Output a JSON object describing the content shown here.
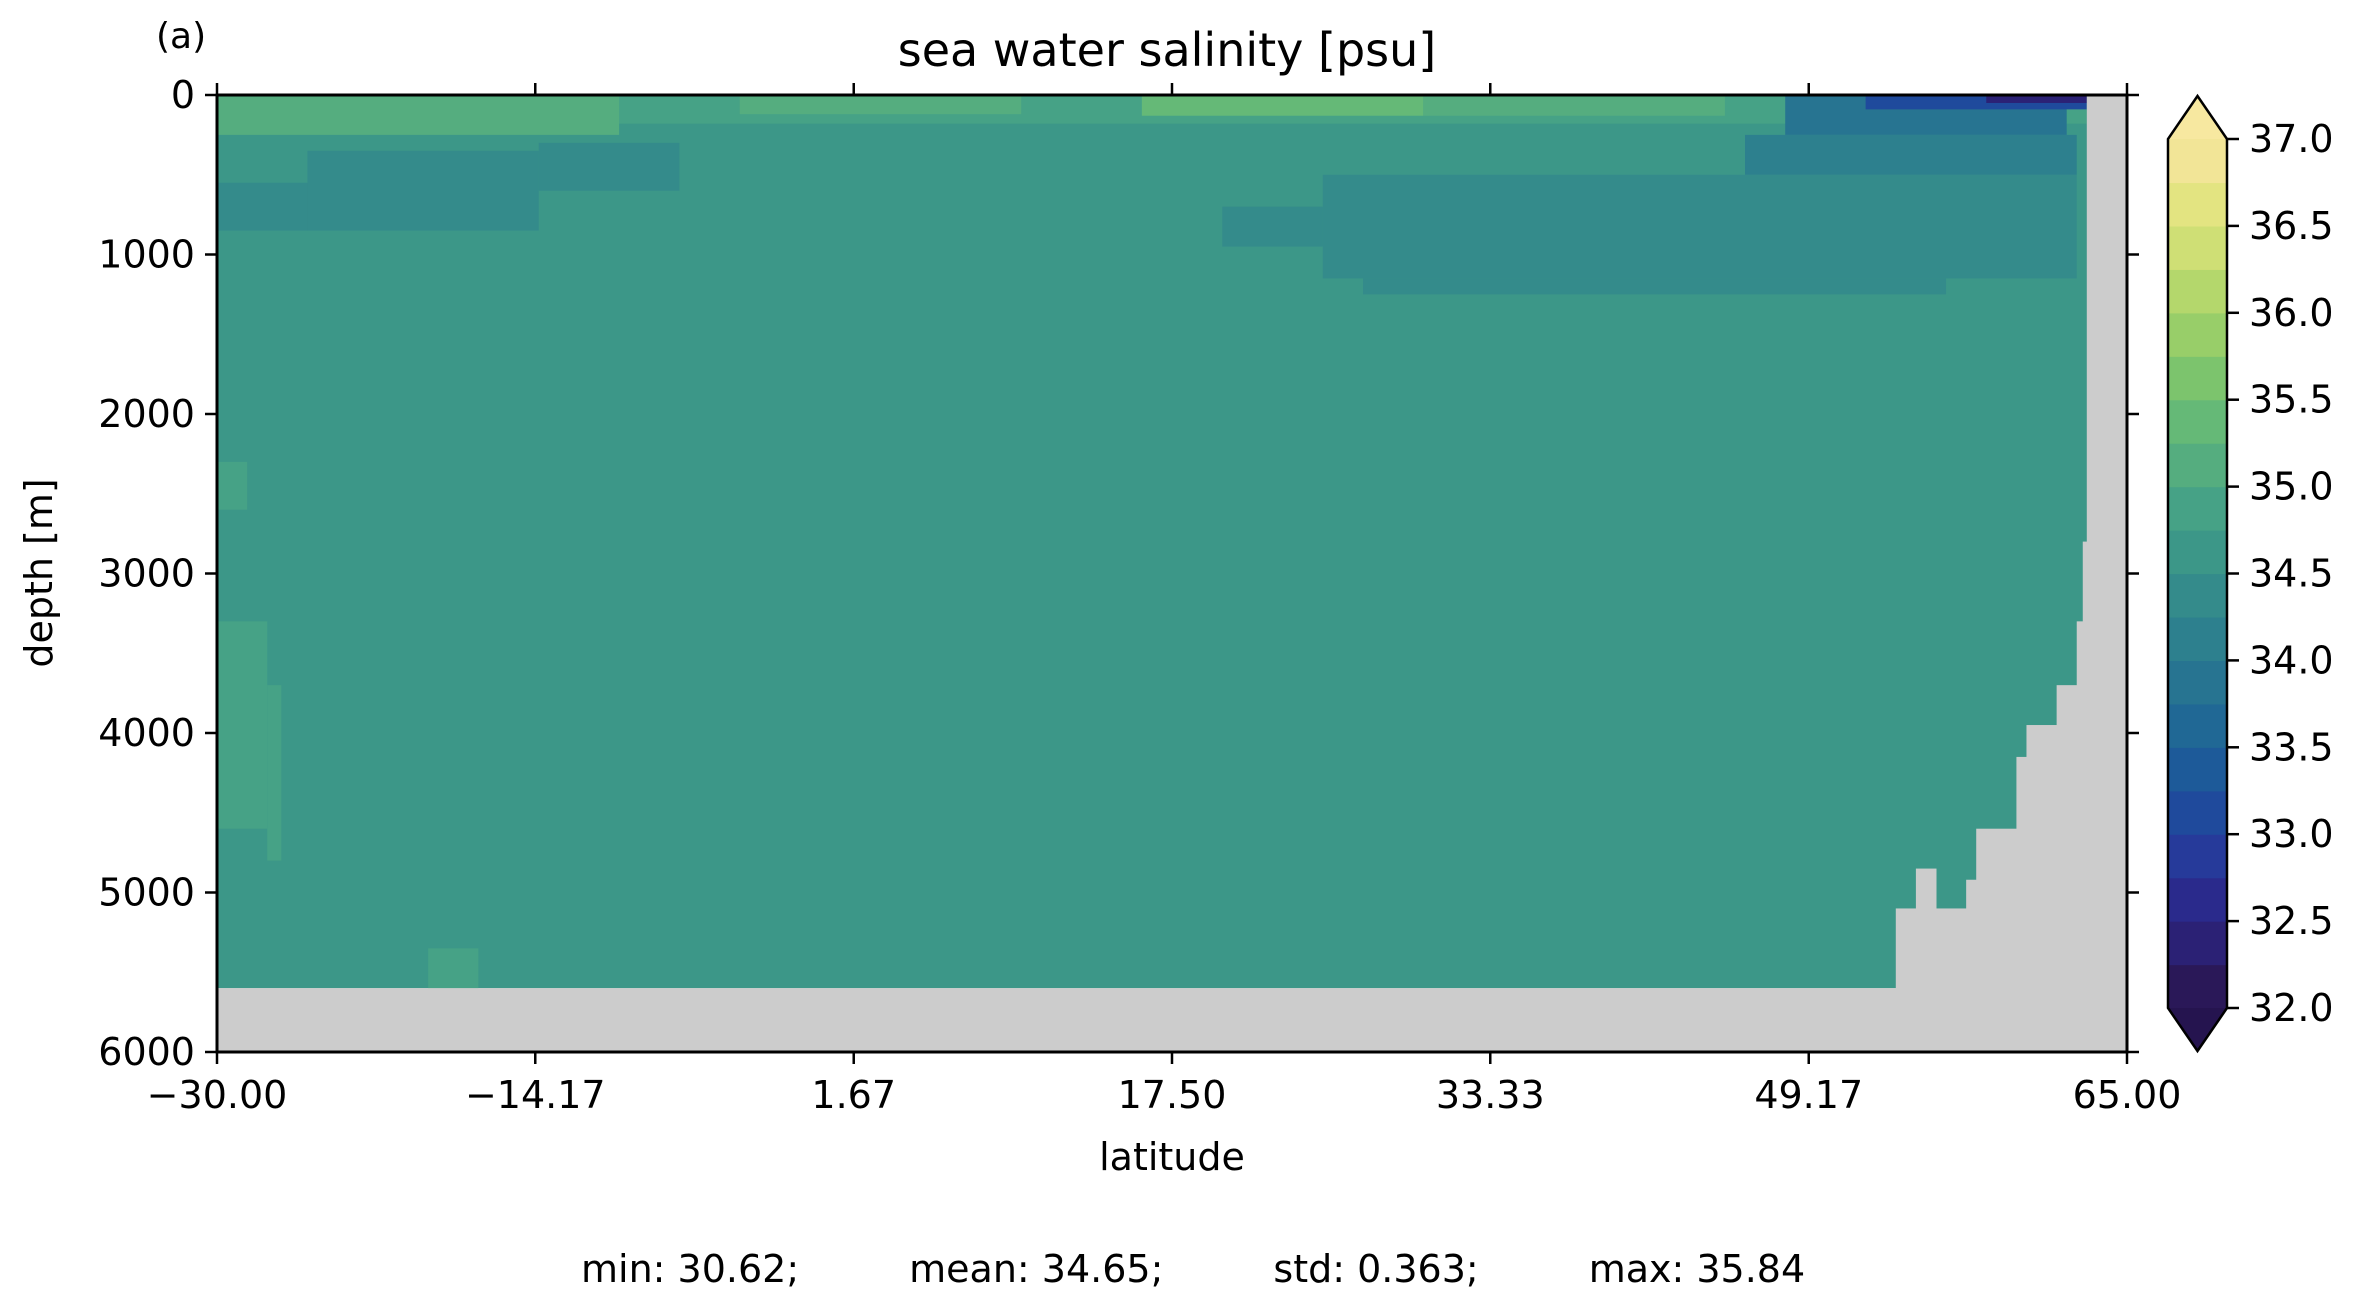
{
  "panel_label": "(a)",
  "stats": {
    "min": "min: 30.62;",
    "mean": "mean: 34.65;",
    "std": "std: 0.363;",
    "max": "max: 35.84"
  },
  "chart_data": {
    "type": "heatmap",
    "title": "sea water salinity [psu]",
    "xlabel": "latitude",
    "ylabel": "depth [m]",
    "xlim": [
      -30.0,
      65.0
    ],
    "ylim": [
      6000,
      0
    ],
    "y_inverted": true,
    "xticks": [
      -30.0,
      -14.17,
      1.67,
      17.5,
      33.33,
      49.17,
      65.0
    ],
    "xtick_labels": [
      "−30.00",
      "−14.17",
      "1.67",
      "17.50",
      "33.33",
      "49.17",
      "65.00"
    ],
    "yticks": [
      0,
      1000,
      2000,
      3000,
      4000,
      5000,
      6000
    ],
    "ytick_labels": [
      "0",
      "1000",
      "2000",
      "3000",
      "4000",
      "5000",
      "6000"
    ],
    "colorbar": {
      "min": 32.0,
      "max": 37.0,
      "step": 0.25,
      "extend": "both",
      "ticks": [
        32.0,
        32.5,
        33.0,
        33.5,
        34.0,
        34.5,
        35.0,
        35.5,
        36.0,
        36.5,
        37.0
      ],
      "tick_labels": [
        "32.0",
        "32.5",
        "33.0",
        "33.5",
        "34.0",
        "34.5",
        "35.0",
        "35.5",
        "36.0",
        "36.5",
        "37.0"
      ],
      "colors": [
        "#2a1858",
        "#2b2175",
        "#2a2a8c",
        "#263a9a",
        "#1f4a9c",
        "#1d5a99",
        "#206895",
        "#277491",
        "#2d808e",
        "#348b8b",
        "#3c9788",
        "#46a286",
        "#55ad7f",
        "#65b977",
        "#7cc46d",
        "#98ce69",
        "#b4d76c",
        "#cfdf75",
        "#e3e481",
        "#f2e597"
      ],
      "under_color": "#25144f",
      "over_color": "#f7e8a0"
    },
    "land_color": "#cccccc",
    "background_value": 34.6,
    "seafloor_depth": 5600,
    "patches": [
      {
        "lat": [
          -30.0,
          63.0
        ],
        "depth": [
          0,
          180
        ],
        "value": 34.9
      },
      {
        "lat": [
          -30.0,
          -10.0
        ],
        "depth": [
          0,
          250
        ],
        "value": 35.1
      },
      {
        "lat": [
          -4.0,
          10.0
        ],
        "depth": [
          0,
          120
        ],
        "value": 35.0
      },
      {
        "lat": [
          16.0,
          30.0
        ],
        "depth": [
          0,
          130
        ],
        "value": 35.3
      },
      {
        "lat": [
          30.0,
          45.0
        ],
        "depth": [
          0,
          130
        ],
        "value": 35.0
      },
      {
        "lat": [
          -30.0,
          -25.5
        ],
        "depth": [
          550,
          850
        ],
        "value": 34.4
      },
      {
        "lat": [
          -25.5,
          -14.0
        ],
        "depth": [
          350,
          850
        ],
        "value": 34.4
      },
      {
        "lat": [
          -14.0,
          -7.0
        ],
        "depth": [
          300,
          600
        ],
        "value": 34.4
      },
      {
        "lat": [
          20.0,
          25.0
        ],
        "depth": [
          700,
          950
        ],
        "value": 34.3
      },
      {
        "lat": [
          25.0,
          62.5
        ],
        "depth": [
          500,
          1150
        ],
        "value": 34.3
      },
      {
        "lat": [
          27.0,
          56.0
        ],
        "depth": [
          1150,
          1250
        ],
        "value": 34.3
      },
      {
        "lat": [
          46.0,
          62.5
        ],
        "depth": [
          250,
          500
        ],
        "value": 34.1
      },
      {
        "lat": [
          48.0,
          62.0
        ],
        "depth": [
          0,
          250
        ],
        "value": 33.9
      },
      {
        "lat": [
          52.0,
          63.0
        ],
        "depth": [
          0,
          90
        ],
        "value": 33.2
      },
      {
        "lat": [
          58.0,
          63.0
        ],
        "depth": [
          0,
          50
        ],
        "value": 32.4
      },
      {
        "lat": [
          -30.0,
          -28.5
        ],
        "depth": [
          2300,
          2600
        ],
        "value": 34.9
      },
      {
        "lat": [
          -30.0,
          -27.5
        ],
        "depth": [
          3300,
          4600
        ],
        "value": 34.9
      },
      {
        "lat": [
          -27.5,
          -26.8
        ],
        "depth": [
          3700,
          4800
        ],
        "value": 34.9
      },
      {
        "lat": [
          -19.5,
          -17.0
        ],
        "depth": [
          5350,
          5600
        ],
        "value": 34.9
      }
    ],
    "bathymetry_steps": [
      {
        "lat": 63.0,
        "top": 0
      },
      {
        "lat": 62.8,
        "top": 2800
      },
      {
        "lat": 62.5,
        "top": 3300
      },
      {
        "lat": 61.5,
        "top": 3700
      },
      {
        "lat": 60.0,
        "top": 3950
      },
      {
        "lat": 59.5,
        "top": 4150
      },
      {
        "lat": 57.5,
        "top": 4600
      },
      {
        "lat": 57.0,
        "top": 4920
      },
      {
        "lat": 55.5,
        "top": 5100
      },
      {
        "lat": 54.5,
        "top": 4850
      },
      {
        "lat": 53.5,
        "top": 5100
      }
    ]
  }
}
